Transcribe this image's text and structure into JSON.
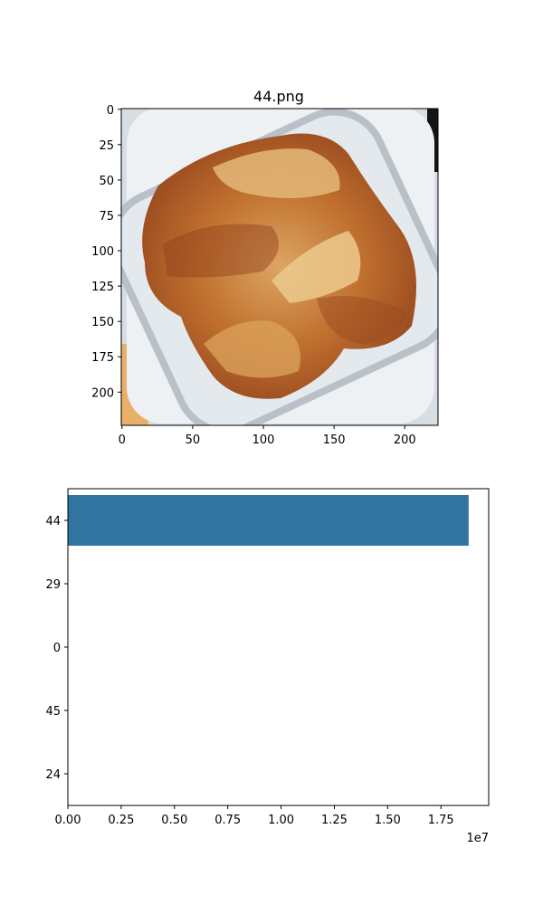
{
  "image_panel": {
    "title": "44.png",
    "xticks": [
      "0",
      "50",
      "100",
      "150",
      "200"
    ],
    "yticks": [
      "0",
      "25",
      "50",
      "75",
      "100",
      "125",
      "150",
      "175",
      "200"
    ],
    "xlim": [
      -0.5,
      223.5
    ],
    "ylim": [
      223.5,
      -0.5
    ],
    "colors": {
      "tray": "#e4e9ee",
      "tray_shadow": "#b9c0c8",
      "food_dark": "#9a4a1f",
      "food_mid": "#c0702e",
      "food_light": "#dda563",
      "background_left": "#e9b06a",
      "background_right": "#141414"
    }
  },
  "chart_data": {
    "type": "bar",
    "orientation": "horizontal",
    "categories": [
      "44",
      "29",
      "0",
      "45",
      "24"
    ],
    "values": [
      18800000,
      0,
      0,
      0,
      0
    ],
    "xticks": [
      "0.00",
      "0.25",
      "0.50",
      "0.75",
      "1.00",
      "1.25",
      "1.50",
      "1.75"
    ],
    "offset_label": "1e7",
    "xlim": [
      0,
      19740000
    ],
    "bar_color": "#3274a1"
  }
}
